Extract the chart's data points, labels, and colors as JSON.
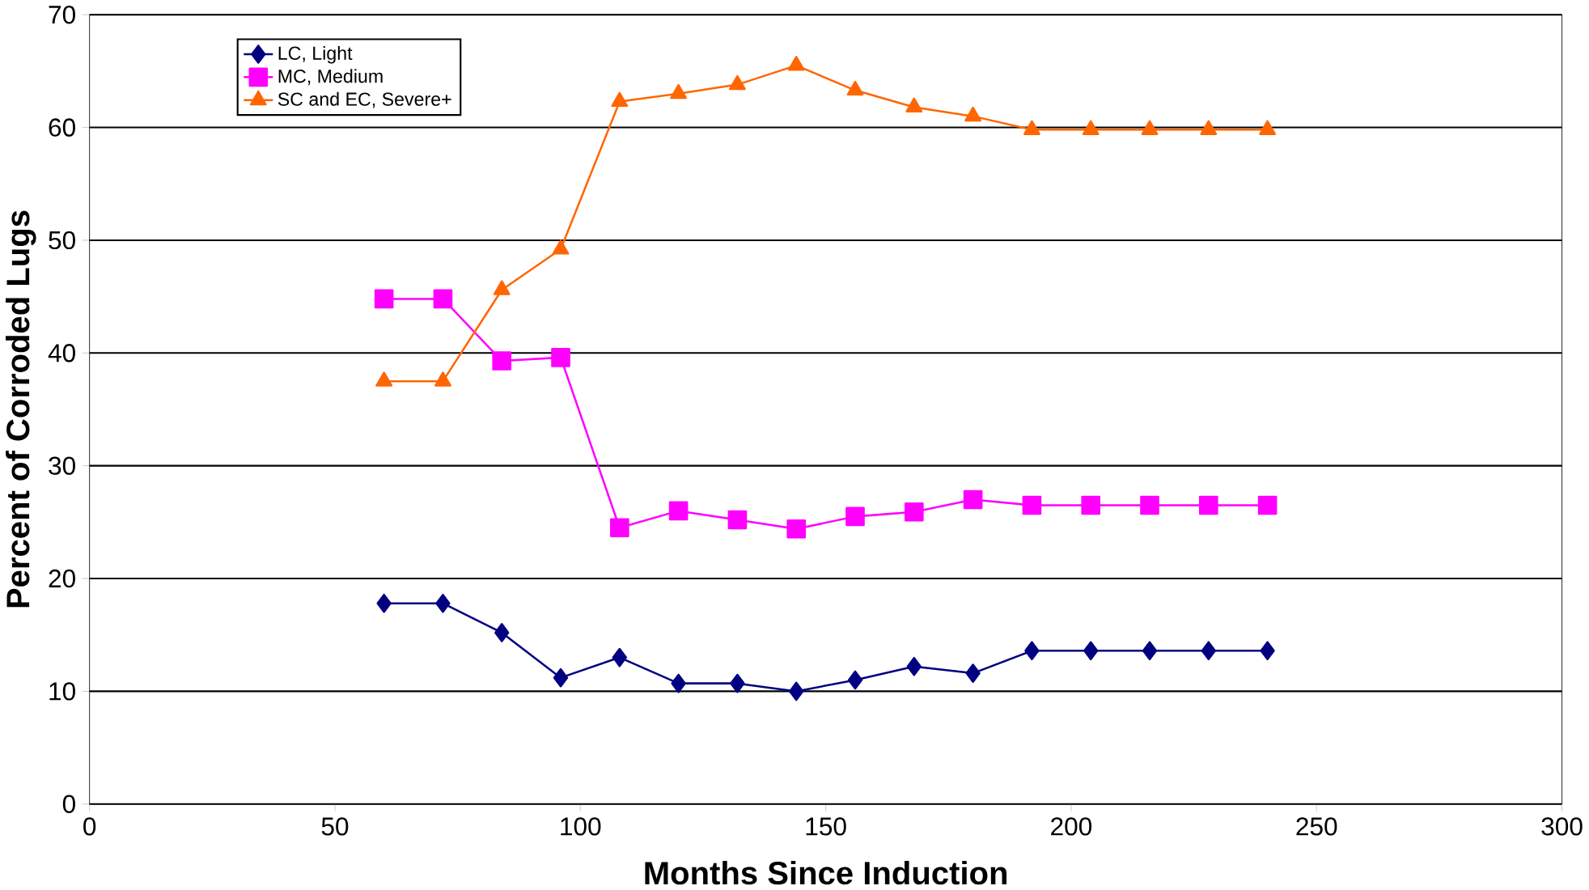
{
  "chart_data": {
    "type": "line",
    "xlabel": "Months Since Induction",
    "ylabel": "Percent of Corroded Lugs",
    "x": [
      60,
      72,
      84,
      96,
      108,
      120,
      132,
      144,
      156,
      168,
      180,
      192,
      204,
      216,
      228,
      240
    ],
    "series": [
      {
        "name": "LC, Light",
        "color": "#000080",
        "marker": "diamond",
        "values": [
          17.8,
          17.8,
          15.2,
          11.2,
          13,
          10.7,
          10.7,
          10,
          11,
          12.2,
          11.6,
          13.6,
          13.6,
          13.6,
          13.6,
          13.6
        ]
      },
      {
        "name": "MC, Medium",
        "color": "#ff00ff",
        "marker": "square",
        "values": [
          44.8,
          44.8,
          39.3,
          39.6,
          24.5,
          26,
          25.2,
          24.4,
          25.5,
          25.9,
          27,
          26.5,
          26.5,
          26.5,
          26.5,
          26.5
        ]
      },
      {
        "name": "SC and EC, Severe+",
        "color": "#ff6600",
        "marker": "triangle",
        "values": [
          37.5,
          37.5,
          45.6,
          49.2,
          62.3,
          63,
          63.8,
          65.5,
          63.3,
          61.8,
          61,
          59.8,
          59.8,
          59.8,
          59.8,
          59.8
        ]
      }
    ],
    "xlim": [
      0,
      300
    ],
    "xticks": [
      0,
      50,
      100,
      150,
      200,
      250,
      300
    ],
    "ylim": [
      0,
      70
    ],
    "yticks": [
      0,
      10,
      20,
      30,
      40,
      50,
      60,
      70
    ],
    "grid": "y",
    "legend": "top left",
    "line_style": "solid"
  }
}
